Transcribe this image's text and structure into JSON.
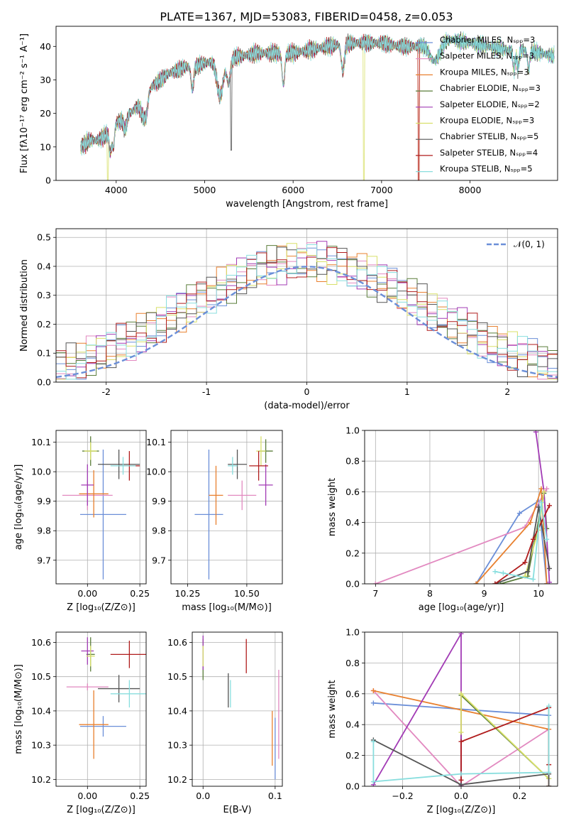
{
  "figure_title": "PLATE=1367, MJD=53083, FIBERID=0458, z=0.053",
  "palette": [
    "#6b8fd8",
    "#e289c0",
    "#e8802f",
    "#5a7d3a",
    "#a23bb5",
    "#d8e06a",
    "#555555",
    "#b01c1c",
    "#88dede"
  ],
  "chart_data": [
    {
      "id": "spectrum",
      "type": "line",
      "xlabel": "wavelength [Angstrom, rest frame]",
      "ylabel": "Flux [fλ10⁻¹⁷ erg cm⁻² s⁻¹ A⁻¹]",
      "xlim": [
        3320,
        8990
      ],
      "ylim": [
        0,
        46
      ],
      "xticks": [
        4000,
        5000,
        6000,
        7000,
        8000
      ],
      "yticks": [
        0,
        10,
        20,
        30,
        40
      ],
      "grid": false,
      "legend": "top-right",
      "series_names": [
        "Chabrier MILES, Nₛₚₚ=3",
        "Salpeter MILES, Nₛₚₚ=3",
        "Kroupa MILES, Nₛₚₚ=3",
        "Chabrier ELODIE, Nₛₚₚ=3",
        "Salpeter ELODIE, Nₛₚₚ=2",
        "Kroupa ELODIE, Nₛₚₚ=3",
        "Chabrier STELIB, Nₛₚₚ=5",
        "Salpeter STELIB, Nₛₚₚ=4",
        "Kroupa STELIB, Nₛₚₚ=5"
      ],
      "continuum": {
        "x": [
          3600,
          3700,
          3800,
          3900,
          4000,
          4100,
          4200,
          4300,
          4400,
          4500,
          4600,
          4700,
          4800,
          4900,
          5000,
          5200,
          5400,
          5600,
          5800,
          6000,
          6200,
          6400,
          6600,
          6800,
          7000,
          7200,
          7400,
          7600,
          7800,
          8000,
          8200,
          8400,
          8600,
          8800,
          8950
        ],
        "y": [
          10,
          12,
          12,
          14,
          17,
          19,
          21,
          24,
          28,
          30,
          32,
          33,
          34,
          34,
          35,
          36,
          37,
          38,
          38,
          38,
          39,
          40,
          41,
          41,
          41,
          40,
          40,
          42,
          42,
          41,
          40,
          39,
          39,
          38,
          37
        ]
      }
    },
    {
      "id": "residuals",
      "type": "histogram",
      "xlabel": "(data-model)/error",
      "ylabel": "Normed distribution",
      "xlim": [
        -2.5,
        2.5
      ],
      "ylim": [
        0,
        0.53
      ],
      "xticks": [
        -2,
        -1,
        0,
        1,
        2
      ],
      "yticks": [
        0.0,
        0.1,
        0.2,
        0.3,
        0.4,
        0.5
      ],
      "grid": true,
      "legend_label": "𝒩(0, 1)",
      "bin_width": 0.1
    },
    {
      "id": "age_vs_Z",
      "type": "errorbar",
      "xlabel": "Z [log₁₀(Z/Z⊙)]",
      "ylabel": "age  [log₁₀(age/yr)]",
      "xlim": [
        -0.15,
        0.28
      ],
      "ylim": [
        9.62,
        10.14
      ],
      "xticks": [
        0.0,
        0.25
      ],
      "xtick_labels": [
        "0.00",
        "0.25"
      ],
      "yticks": [
        9.7,
        9.8,
        9.9,
        10.0,
        10.1
      ],
      "ytick_labels": [
        "9.7",
        "9.8",
        "9.9",
        "10.0",
        "10.1"
      ],
      "grid": true,
      "points": [
        {
          "x": 0.075,
          "y": 9.855,
          "xerr": 0.11,
          "yerr": 0.22
        },
        {
          "x": 0.0,
          "y": 9.92,
          "xerr": 0.12,
          "yerr": 0.05
        },
        {
          "x": 0.03,
          "y": 9.925,
          "xerr": 0.07,
          "yerr": 0.08
        },
        {
          "x": 0.015,
          "y": 10.07,
          "xerr": 0.04,
          "yerr": 0.05
        },
        {
          "x": 0.0,
          "y": 9.955,
          "xerr": 0.03,
          "yerr": 0.07
        },
        {
          "x": 0.015,
          "y": 10.07,
          "xerr": 0.03,
          "yerr": 0.03
        },
        {
          "x": 0.15,
          "y": 10.025,
          "xerr": 0.1,
          "yerr": 0.05
        },
        {
          "x": 0.2,
          "y": 10.02,
          "xerr": 0.05,
          "yerr": 0.05
        },
        {
          "x": 0.17,
          "y": 10.02,
          "xerr": 0.06,
          "yerr": 0.03
        }
      ]
    },
    {
      "id": "age_vs_mass",
      "type": "errorbar",
      "xlabel": "mass [log₁₀(M/M⊙)]",
      "ylabel": "",
      "xlim": [
        10.18,
        10.65
      ],
      "ylim": [
        9.62,
        10.14
      ],
      "xticks": [
        10.25,
        10.5
      ],
      "xtick_labels": [
        "10.25",
        "10.50"
      ],
      "yticks": [
        9.7,
        9.8,
        9.9,
        10.0,
        10.1
      ],
      "ytick_labels": [
        "9.7",
        "9.8",
        "9.9",
        "10.0",
        "10.1"
      ],
      "grid": true,
      "points": [
        {
          "x": 10.34,
          "y": 9.855,
          "xerr": 0.06,
          "yerr": 0.22
        },
        {
          "x": 10.48,
          "y": 9.92,
          "xerr": 0.06,
          "yerr": 0.05
        },
        {
          "x": 10.37,
          "y": 9.92,
          "xerr": 0.03,
          "yerr": 0.1
        },
        {
          "x": 10.58,
          "y": 10.07,
          "xerr": 0.03,
          "yerr": 0.04
        },
        {
          "x": 10.58,
          "y": 9.955,
          "xerr": 0.03,
          "yerr": 0.07
        },
        {
          "x": 10.56,
          "y": 10.07,
          "xerr": 0.02,
          "yerr": 0.05
        },
        {
          "x": 10.46,
          "y": 10.025,
          "xerr": 0.04,
          "yerr": 0.05
        },
        {
          "x": 10.55,
          "y": 10.02,
          "xerr": 0.04,
          "yerr": 0.05
        },
        {
          "x": 10.44,
          "y": 10.02,
          "xerr": 0.02,
          "yerr": 0.03
        }
      ]
    },
    {
      "id": "weight_vs_age",
      "type": "line",
      "xlabel": "age  [log₁₀(age/yr)]",
      "ylabel": "mass weight",
      "xlim": [
        6.8,
        10.35
      ],
      "ylim": [
        0,
        1.0
      ],
      "xticks": [
        7,
        8,
        9,
        10
      ],
      "xtick_labels": [
        "7",
        "8",
        "9",
        "10"
      ],
      "yticks": [
        0.0,
        0.2,
        0.4,
        0.6,
        0.8,
        1.0
      ],
      "ytick_labels": [
        "0.0",
        "0.2",
        "0.4",
        "0.6",
        "0.8",
        "1.0"
      ],
      "grid": true,
      "series": [
        {
          "x": [
            8.85,
            9.65,
            10.0,
            10.15
          ],
          "y": [
            0,
            0.46,
            0.54,
            0.0
          ]
        },
        {
          "x": [
            7.0,
            9.75,
            10.15
          ],
          "y": [
            0,
            0.37,
            0.62
          ]
        },
        {
          "x": [
            8.85,
            9.85,
            10.05,
            10.15
          ],
          "y": [
            0,
            0.4,
            0.62,
            0.0
          ]
        },
        {
          "x": [
            9.3,
            9.8,
            10.1,
            10.15
          ],
          "y": [
            0,
            0.05,
            0.59,
            0.36
          ]
        },
        {
          "x": [
            9.95,
            10.1,
            10.2
          ],
          "y": [
            0.99,
            0.6,
            0.01
          ]
        },
        {
          "x": [
            9.75,
            10.0,
            10.1
          ],
          "y": [
            0.05,
            0.35,
            0.6
          ]
        },
        {
          "x": [
            9.2,
            9.8,
            10.0,
            10.2
          ],
          "y": [
            0.0,
            0.08,
            0.5,
            0.1
          ]
        },
        {
          "x": [
            9.2,
            9.75,
            9.9,
            10.2
          ],
          "y": [
            0.0,
            0.14,
            0.29,
            0.51
          ]
        },
        {
          "x": [
            9.2,
            9.35,
            9.9,
            10.05,
            10.15
          ],
          "y": [
            0.08,
            0.07,
            0.03,
            0.53,
            0.29
          ]
        }
      ]
    },
    {
      "id": "mass_vs_Z",
      "type": "errorbar",
      "xlabel": "Z [log₁₀(Z/Z⊙)]",
      "ylabel": "mass [log₁₀(M/M⊙)]",
      "xlim": [
        -0.15,
        0.28
      ],
      "ylim": [
        10.18,
        10.63
      ],
      "xticks": [
        0.0,
        0.25
      ],
      "xtick_labels": [
        "0.00",
        "0.25"
      ],
      "yticks": [
        10.2,
        10.3,
        10.4,
        10.5,
        10.6
      ],
      "ytick_labels": [
        "10.2",
        "10.3",
        "10.4",
        "10.5",
        "10.6"
      ],
      "grid": true,
      "points": [
        {
          "x": 0.075,
          "y": 10.355,
          "xerr": 0.11,
          "yerr": 0.03
        },
        {
          "x": 0.0,
          "y": 10.47,
          "xerr": 0.1,
          "yerr": 0.01
        },
        {
          "x": 0.03,
          "y": 10.36,
          "xerr": 0.07,
          "yerr": 0.1
        },
        {
          "x": 0.015,
          "y": 10.565,
          "xerr": 0.02,
          "yerr": 0.05
        },
        {
          "x": 0.0,
          "y": 10.575,
          "xerr": 0.03,
          "yerr": 0.04
        },
        {
          "x": 0.015,
          "y": 10.56,
          "xerr": 0.02,
          "yerr": 0.03
        },
        {
          "x": 0.15,
          "y": 10.465,
          "xerr": 0.1,
          "yerr": 0.04
        },
        {
          "x": 0.2,
          "y": 10.565,
          "xerr": 0.09,
          "yerr": 0.04
        },
        {
          "x": 0.2,
          "y": 10.45,
          "xerr": 0.09,
          "yerr": 0.04
        }
      ]
    },
    {
      "id": "mass_vs_ebv",
      "type": "errorbar",
      "xlabel": "E(B-V)",
      "ylabel": "",
      "xlim": [
        -0.015,
        0.11
      ],
      "ylim": [
        10.18,
        10.63
      ],
      "xticks": [
        0.0,
        0.1
      ],
      "xtick_labels": [
        "0.0",
        "0.1"
      ],
      "yticks": [
        10.2,
        10.3,
        10.4,
        10.5,
        10.6
      ],
      "ytick_labels": [
        "10.2",
        "10.3",
        "10.4",
        "10.5",
        "10.6"
      ],
      "grid": true,
      "points": [
        {
          "x": 0.1,
          "y": 10.29,
          "xerr": 0,
          "yerr": 0.09
        },
        {
          "x": 0.105,
          "y": 10.39,
          "xerr": 0,
          "yerr": 0.13
        },
        {
          "x": 0.096,
          "y": 10.32,
          "xerr": 0,
          "yerr": 0.08
        },
        {
          "x": 0.0,
          "y": 10.55,
          "xerr": 0,
          "yerr": 0.06
        },
        {
          "x": 0.0,
          "y": 10.57,
          "xerr": 0,
          "yerr": 0.05
        },
        {
          "x": 0.0,
          "y": 10.56,
          "xerr": 0,
          "yerr": 0.03
        },
        {
          "x": 0.035,
          "y": 10.46,
          "xerr": 0,
          "yerr": 0.05
        },
        {
          "x": 0.06,
          "y": 10.56,
          "xerr": 0,
          "yerr": 0.05
        },
        {
          "x": 0.038,
          "y": 10.45,
          "xerr": 0,
          "yerr": 0.04
        }
      ]
    },
    {
      "id": "weight_vs_Z",
      "type": "line",
      "xlabel": "Z [log₁₀(Z/Z⊙)]",
      "ylabel": "mass weight",
      "xlim": [
        -0.33,
        0.33
      ],
      "ylim": [
        0,
        1.0
      ],
      "xticks": [
        -0.2,
        0.0,
        0.2
      ],
      "xtick_labels": [
        "−0.2",
        "0.0",
        "0.2"
      ],
      "yticks": [
        0.0,
        0.2,
        0.4,
        0.6,
        0.8,
        1.0
      ],
      "ytick_labels": [
        "0.0",
        "0.2",
        "0.4",
        "0.6",
        "0.8",
        "1.0"
      ],
      "grid": true,
      "series": [
        {
          "x": [
            -0.3,
            0.3,
            0.3
          ],
          "y": [
            0.54,
            0.46,
            0.0
          ]
        },
        {
          "x": [
            -0.3,
            0.0,
            0.3,
            0.3
          ],
          "y": [
            0.62,
            0.0,
            0.37,
            0.0
          ]
        },
        {
          "x": [
            -0.3,
            0.3,
            0.3
          ],
          "y": [
            0.62,
            0.37,
            0.0
          ]
        },
        {
          "x": [
            0.0,
            0.0,
            0.3
          ],
          "y": [
            0.0,
            0.59,
            0.05
          ]
        },
        {
          "x": [
            -0.3,
            0.0,
            0.0
          ],
          "y": [
            0.01,
            0.99,
            0.0
          ]
        },
        {
          "x": [
            0.0,
            0.0,
            0.3
          ],
          "y": [
            0.35,
            0.6,
            0.05
          ]
        },
        {
          "x": [
            -0.3,
            0.0,
            0.3,
            0.3
          ],
          "y": [
            0.3,
            0.01,
            0.08,
            0.0
          ]
        },
        {
          "x": [
            0.0,
            0.0,
            0.3,
            0.3
          ],
          "y": [
            0.04,
            0.29,
            0.51,
            0.14
          ]
        },
        {
          "x": [
            -0.3,
            -0.3,
            0.0,
            0.3,
            0.3
          ],
          "y": [
            0.29,
            0.03,
            0.08,
            0.09,
            0.52
          ]
        }
      ]
    }
  ]
}
